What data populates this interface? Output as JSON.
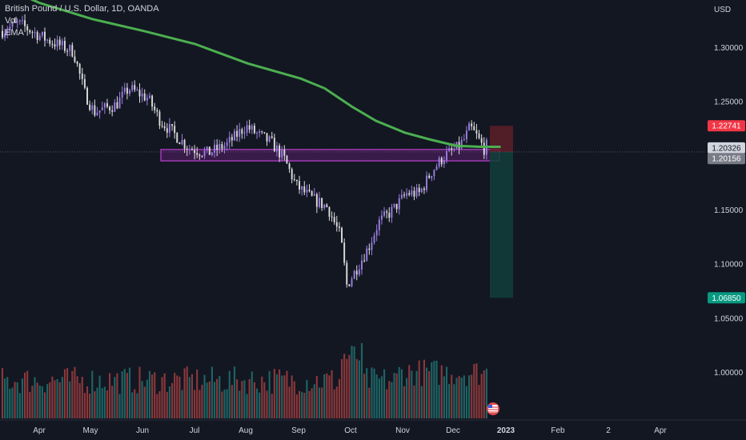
{
  "legend": {
    "symbol_line": "British Pound / U.S. Dollar, 1D, OANDA",
    "vol_label": "Vol",
    "ema_label": "EMA"
  },
  "chart_data": {
    "type": "candlestick",
    "title": "British Pound / U.S. Dollar, 1D, OANDA",
    "currency": "USD",
    "x_tick_labels": [
      "Apr",
      "May",
      "Jun",
      "Jul",
      "Aug",
      "Sep",
      "Oct",
      "Nov",
      "Dec",
      "2023",
      "Feb",
      "2",
      "Apr"
    ],
    "y_tick_labels": [
      "1.30000",
      "1.25000",
      "1.20000",
      "1.15000",
      "1.10000",
      "1.05000",
      "1.00000"
    ],
    "ylim": [
      0.97,
      1.345
    ],
    "ema_series": [
      [
        "2022-03-22",
        1.348
      ],
      [
        "2022-04-01",
        1.341
      ],
      [
        "2022-05-02",
        1.326
      ],
      [
        "2022-06-01",
        1.315
      ],
      [
        "2022-07-01",
        1.303
      ],
      [
        "2022-08-01",
        1.285
      ],
      [
        "2022-09-01",
        1.271
      ],
      [
        "2022-09-15",
        1.262
      ],
      [
        "2022-10-01",
        1.245
      ],
      [
        "2022-10-15",
        1.232
      ],
      [
        "2022-11-01",
        1.221
      ],
      [
        "2022-11-15",
        1.215
      ],
      [
        "2022-12-01",
        1.209
      ],
      [
        "2022-12-15",
        1.208
      ],
      [
        "2022-12-27",
        1.208
      ]
    ],
    "support_zone": {
      "top": 1.2055,
      "bottom": 1.195
    },
    "position": {
      "entry": 1.20326,
      "stop": 1.22741,
      "target": 1.0685
    },
    "price_tags": [
      {
        "label": "1.22741",
        "value": 1.22741,
        "color": "#f23645"
      },
      {
        "label": "1.20326",
        "value": 1.20326,
        "color": "#d1d4dc"
      },
      {
        "label": "1.20156",
        "value": 1.20156,
        "color": "#787b86"
      },
      {
        "label": "1.06850",
        "value": 1.0685,
        "color": "#089981"
      }
    ],
    "colors": {
      "up_candle": "#9b7ee0",
      "down_candle": "#dcdcdc",
      "volume_up": "#26a69a",
      "volume_down": "#ef5350",
      "ema": "#4caf50",
      "zone": "#9c27b0",
      "stop_zone": "#5d1f28",
      "target_zone": "#123e3a",
      "background": "#131722"
    }
  }
}
